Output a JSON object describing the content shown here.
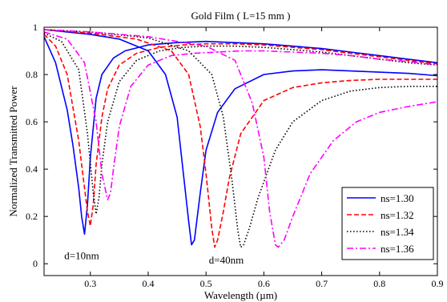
{
  "chart_data": {
    "type": "line",
    "title": "Gold Film ( L=15 mm )",
    "xlabel": "Wavelength (µm)",
    "ylabel": "Normalized Transmitted Power",
    "xlim": [
      0.22,
      0.9
    ],
    "ylim": [
      -0.05,
      1.0
    ],
    "xticks": [
      0.3,
      0.4,
      0.5,
      0.6,
      0.7,
      0.8,
      0.9
    ],
    "xtick_labels": [
      "0.3",
      "0.4",
      "0.5",
      "0.6",
      "0.7",
      "0.8",
      "0.9"
    ],
    "yticks": [
      0,
      0.2,
      0.4,
      0.6,
      0.8,
      1
    ],
    "ytick_labels": [
      "0",
      "0.2",
      "0.4",
      "0.6",
      "0.8",
      "1"
    ],
    "grid": false,
    "legend_position": "bottom-right",
    "annotations": [
      {
        "text": "d=10nm",
        "x": 0.255,
        "y": 0.02
      },
      {
        "text": "d=40nm",
        "x": 0.505,
        "y": 0.0
      }
    ],
    "series": [
      {
        "name": "ns=1.30",
        "color": "#0000ff",
        "dash": "solid",
        "group": "d=10nm",
        "x": [
          0.22,
          0.24,
          0.26,
          0.27,
          0.28,
          0.285,
          0.29,
          0.295,
          0.3,
          0.31,
          0.32,
          0.34,
          0.36,
          0.4,
          0.45,
          0.5,
          0.55,
          0.6,
          0.65,
          0.7,
          0.75,
          0.8,
          0.85,
          0.9
        ],
        "y": [
          0.96,
          0.85,
          0.65,
          0.5,
          0.32,
          0.2,
          0.125,
          0.25,
          0.45,
          0.7,
          0.8,
          0.87,
          0.9,
          0.925,
          0.935,
          0.94,
          0.935,
          0.93,
          0.92,
          0.91,
          0.895,
          0.88,
          0.865,
          0.85
        ]
      },
      {
        "name": "ns=1.32",
        "color": "#ff0000",
        "dash": "dashed",
        "group": "d=10nm",
        "x": [
          0.22,
          0.24,
          0.26,
          0.28,
          0.29,
          0.295,
          0.3,
          0.305,
          0.31,
          0.32,
          0.33,
          0.35,
          0.38,
          0.42,
          0.46,
          0.5,
          0.55,
          0.6,
          0.65,
          0.7,
          0.75,
          0.8,
          0.85,
          0.9
        ],
        "y": [
          0.97,
          0.92,
          0.8,
          0.52,
          0.32,
          0.22,
          0.16,
          0.25,
          0.42,
          0.62,
          0.74,
          0.84,
          0.89,
          0.915,
          0.925,
          0.93,
          0.93,
          0.925,
          0.915,
          0.905,
          0.89,
          0.875,
          0.86,
          0.845
        ]
      },
      {
        "name": "ns=1.34",
        "color": "#000000",
        "dash": "dotted",
        "group": "d=10nm",
        "x": [
          0.22,
          0.25,
          0.28,
          0.295,
          0.305,
          0.31,
          0.315,
          0.32,
          0.33,
          0.35,
          0.38,
          0.42,
          0.46,
          0.5,
          0.55,
          0.6,
          0.65,
          0.7,
          0.75,
          0.8,
          0.85,
          0.9
        ],
        "y": [
          0.975,
          0.94,
          0.82,
          0.55,
          0.3,
          0.21,
          0.28,
          0.42,
          0.6,
          0.77,
          0.86,
          0.9,
          0.915,
          0.92,
          0.92,
          0.915,
          0.905,
          0.895,
          0.88,
          0.865,
          0.85,
          0.84
        ]
      },
      {
        "name": "ns=1.36",
        "color": "#ff00ff",
        "dash": "dashdot",
        "group": "d=10nm",
        "x": [
          0.22,
          0.26,
          0.29,
          0.31,
          0.32,
          0.33,
          0.335,
          0.34,
          0.35,
          0.37,
          0.4,
          0.44,
          0.48,
          0.52,
          0.56,
          0.6,
          0.65,
          0.7,
          0.75,
          0.8,
          0.85,
          0.9
        ],
        "y": [
          0.98,
          0.95,
          0.85,
          0.6,
          0.38,
          0.27,
          0.3,
          0.4,
          0.58,
          0.75,
          0.84,
          0.88,
          0.89,
          0.895,
          0.9,
          0.9,
          0.895,
          0.89,
          0.88,
          0.865,
          0.855,
          0.84
        ]
      },
      {
        "name": "ns=1.30",
        "color": "#0000ff",
        "dash": "solid",
        "group": "d=40nm",
        "x": [
          0.22,
          0.3,
          0.35,
          0.4,
          0.43,
          0.45,
          0.46,
          0.47,
          0.475,
          0.48,
          0.49,
          0.5,
          0.52,
          0.55,
          0.6,
          0.65,
          0.7,
          0.75,
          0.8,
          0.85,
          0.9
        ],
        "y": [
          0.99,
          0.97,
          0.95,
          0.9,
          0.8,
          0.62,
          0.4,
          0.18,
          0.08,
          0.1,
          0.3,
          0.48,
          0.64,
          0.74,
          0.8,
          0.815,
          0.82,
          0.815,
          0.81,
          0.805,
          0.795
        ]
      },
      {
        "name": "ns=1.32",
        "color": "#ff0000",
        "dash": "dashed",
        "group": "d=40nm",
        "x": [
          0.22,
          0.3,
          0.38,
          0.44,
          0.47,
          0.49,
          0.5,
          0.51,
          0.515,
          0.52,
          0.53,
          0.54,
          0.56,
          0.6,
          0.65,
          0.7,
          0.75,
          0.8,
          0.85,
          0.9
        ],
        "y": [
          0.99,
          0.975,
          0.95,
          0.9,
          0.8,
          0.58,
          0.38,
          0.15,
          0.07,
          0.1,
          0.22,
          0.36,
          0.55,
          0.69,
          0.745,
          0.765,
          0.775,
          0.78,
          0.78,
          0.78
        ]
      },
      {
        "name": "ns=1.34",
        "color": "#000000",
        "dash": "dotted",
        "group": "d=40nm",
        "x": [
          0.22,
          0.3,
          0.4,
          0.47,
          0.51,
          0.53,
          0.545,
          0.555,
          0.56,
          0.565,
          0.575,
          0.59,
          0.62,
          0.65,
          0.7,
          0.75,
          0.8,
          0.85,
          0.9
        ],
        "y": [
          0.99,
          0.98,
          0.955,
          0.9,
          0.8,
          0.62,
          0.35,
          0.14,
          0.07,
          0.08,
          0.15,
          0.28,
          0.48,
          0.6,
          0.69,
          0.73,
          0.745,
          0.75,
          0.75
        ]
      },
      {
        "name": "ns=1.36",
        "color": "#ff00ff",
        "dash": "dashdot",
        "group": "d=40nm",
        "x": [
          0.22,
          0.3,
          0.4,
          0.5,
          0.55,
          0.58,
          0.6,
          0.61,
          0.62,
          0.625,
          0.635,
          0.65,
          0.68,
          0.72,
          0.76,
          0.8,
          0.85,
          0.9
        ],
        "y": [
          0.99,
          0.98,
          0.96,
          0.92,
          0.86,
          0.68,
          0.45,
          0.22,
          0.08,
          0.07,
          0.1,
          0.2,
          0.38,
          0.52,
          0.6,
          0.64,
          0.665,
          0.685
        ]
      }
    ]
  }
}
